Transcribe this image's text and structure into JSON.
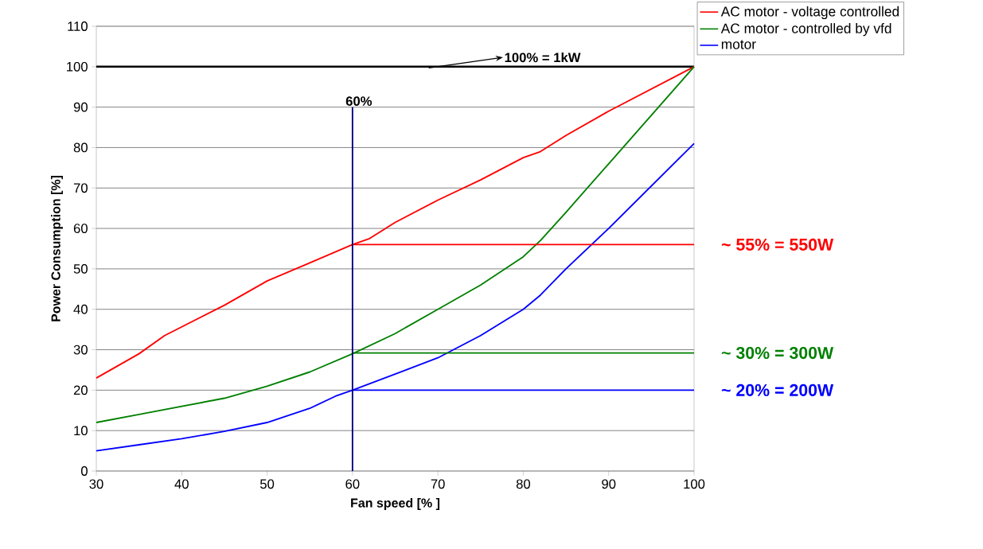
{
  "chart_data": {
    "type": "line",
    "xlabel": "Fan speed [% ]",
    "ylabel": "Power Consumption [%]",
    "xlim": [
      30,
      100
    ],
    "ylim": [
      0,
      110
    ],
    "xticks": [
      30,
      40,
      50,
      60,
      70,
      80,
      90,
      100
    ],
    "yticks": [
      0,
      10,
      20,
      30,
      40,
      50,
      60,
      70,
      80,
      90,
      100,
      110
    ],
    "grid": "y",
    "legend": "top right",
    "line_style": "solid",
    "marker": "none",
    "series": [
      {
        "name": "AC motor - voltage controlled",
        "color": "#ff0000",
        "x": [
          30,
          35,
          38,
          45,
          50,
          55,
          60,
          62,
          65,
          70,
          75,
          80,
          82,
          85,
          90,
          95,
          100
        ],
        "values": [
          23,
          29,
          33.5,
          41,
          47,
          51.5,
          56,
          57.5,
          61.5,
          67,
          72,
          77.5,
          79,
          83,
          89,
          94.5,
          100
        ]
      },
      {
        "name": "AC motor - controlled by vfd",
        "color": "#008000",
        "x": [
          30,
          35,
          40,
          45,
          50,
          55,
          60,
          65,
          70,
          75,
          80,
          82,
          85,
          90,
          95,
          100
        ],
        "values": [
          12,
          14,
          16,
          18,
          21,
          24.5,
          29,
          34,
          40,
          46,
          53,
          57,
          64,
          76,
          88,
          100
        ]
      },
      {
        "name": "motor",
        "color": "#0000ff",
        "x": [
          30,
          35,
          40,
          45,
          50,
          55,
          58,
          60,
          65,
          70,
          75,
          80,
          82,
          85,
          90,
          95,
          100
        ],
        "values": [
          5,
          6.5,
          8,
          9.8,
          12,
          15.5,
          18.5,
          20,
          24,
          28,
          33.5,
          40,
          43.5,
          50,
          60,
          70.5,
          81
        ]
      },
      {
        "color": "#ff0000",
        "x": [
          60,
          100
        ],
        "values": [
          56,
          56
        ]
      },
      {
        "color": "#008000",
        "x": [
          60,
          100
        ],
        "values": [
          29.2,
          29.2
        ]
      },
      {
        "color": "#0000ff",
        "x": [
          60,
          100
        ],
        "values": [
          20,
          20
        ]
      },
      {
        "color": "#000080",
        "x": [
          60,
          60
        ],
        "values": [
          0,
          90
        ]
      }
    ],
    "ref_lines": [
      {
        "axis": "y",
        "value": 100,
        "label": "100% = 1kW",
        "color": "#000000"
      }
    ],
    "annotations": [
      "~ 55% = 550W",
      "~ 30% = 300W",
      "~ 20% = 200W",
      {
        "text": "60%",
        "x": 60,
        "y": 90
      }
    ]
  }
}
